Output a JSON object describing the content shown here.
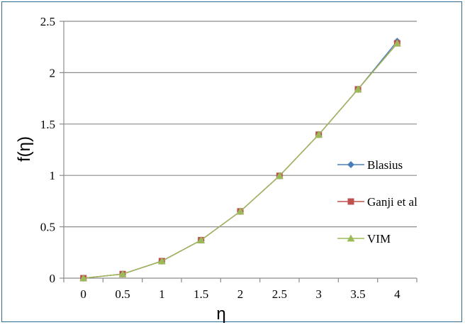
{
  "chart_data": {
    "type": "line",
    "xlabel": "η",
    "ylabel": "f(η)",
    "categories": [
      "0",
      "0.5",
      "1",
      "1.5",
      "2",
      "2.5",
      "3",
      "3.5",
      "4"
    ],
    "x": [
      0,
      0.5,
      1,
      1.5,
      2,
      2.5,
      3,
      3.5,
      4
    ],
    "ylim": [
      0,
      2.5
    ],
    "yticks": [
      "0",
      "0.5",
      "1",
      "1.5",
      "2",
      "2.5"
    ],
    "grid": "horizontal",
    "legend": "right",
    "series": [
      {
        "name": "Blasius",
        "values": [
          0,
          0.04,
          0.166,
          0.37,
          0.65,
          0.996,
          1.397,
          1.838,
          2.306
        ],
        "color": "#4a7ebb",
        "marker": "diamond"
      },
      {
        "name": "Ganji et al",
        "values": [
          0,
          0.04,
          0.166,
          0.37,
          0.65,
          0.996,
          1.397,
          1.838,
          2.285
        ],
        "color": "#c0504d",
        "marker": "square"
      },
      {
        "name": "VIM",
        "values": [
          0,
          0.04,
          0.166,
          0.37,
          0.65,
          0.996,
          1.397,
          1.838,
          2.285
        ],
        "color": "#9bbb59",
        "marker": "triangle"
      }
    ]
  }
}
